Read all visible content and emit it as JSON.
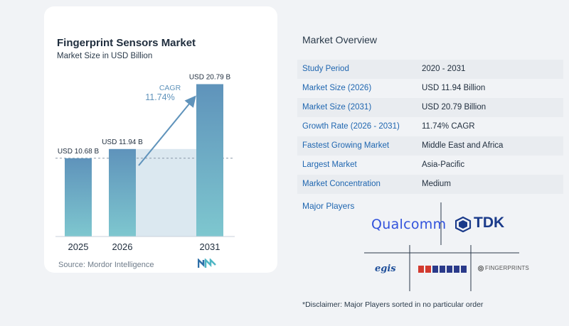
{
  "chart_data": {
    "type": "bar",
    "title": "Fingerprint Sensors Market",
    "subtitle": "Market Size in USD Billion",
    "categories": [
      "2025",
      "2026",
      "2031"
    ],
    "values": [
      10.68,
      11.94,
      20.79
    ],
    "value_labels": [
      "USD 10.68 B",
      "USD 11.94 B",
      "USD 20.79 B"
    ],
    "cagr_label": "CAGR",
    "cagr_value": "11.74%",
    "ylim": [
      0,
      22
    ]
  },
  "source": "Source:  Mordor Intelligence",
  "overview": {
    "title": "Market Overview",
    "rows": [
      {
        "key": "Study Period",
        "value": "2020 - 2031"
      },
      {
        "key": "Market Size (2026)",
        "value": "USD 11.94 Billion"
      },
      {
        "key": "Market Size (2031)",
        "value": "USD 20.79 Billion"
      },
      {
        "key": "Growth Rate (2026 - 2031)",
        "value": "11.74% CAGR"
      },
      {
        "key": "Fastest Growing Market",
        "value": "Middle East and Africa"
      },
      {
        "key": "Largest Market",
        "value": "Asia-Pacific"
      },
      {
        "key": "Market Concentration",
        "value": "Medium"
      }
    ]
  },
  "players": {
    "title": "Major Players",
    "logos": [
      "Qualcomm",
      "TDK",
      "egis",
      "VKANSEE",
      "FINGERPRINTS"
    ]
  },
  "disclaimer": "*Disclaimer: Major Players sorted in no particular order",
  "colors": {
    "bar_top": "#5f93bb",
    "bar_bottom": "#7ec7cf",
    "band": "#dbe8f0",
    "accent": "#1f66b0",
    "cagr": "#5f93bb"
  }
}
